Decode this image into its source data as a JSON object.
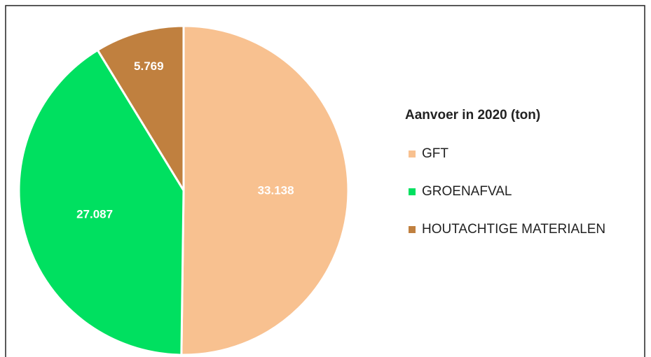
{
  "chart_data": {
    "type": "pie",
    "legend_title": "Aanvoer in 2020 (ton)",
    "categories": [
      "GFT",
      "GROENAFVAL",
      "HOUTACHTIGE MATERIALEN"
    ],
    "values": [
      33138,
      27087,
      5769
    ],
    "value_labels": [
      "33.138",
      "27.087",
      "5.769"
    ],
    "colors": [
      "#f8c190",
      "#00e060",
      "#c0803f"
    ],
    "legend": "right"
  }
}
